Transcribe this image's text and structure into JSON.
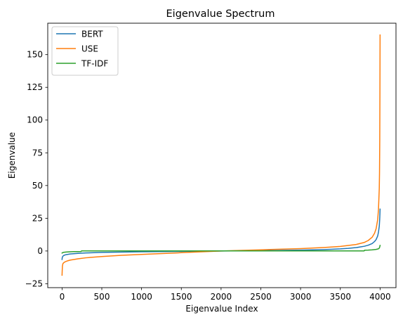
{
  "chart_data": {
    "type": "line",
    "title": "Eigenvalue Spectrum",
    "xlabel": "Eigenvalue Index",
    "ylabel": "Eigenvalue",
    "xlim": [
      -180,
      4200
    ],
    "ylim": [
      -28,
      174
    ],
    "xticks": [
      0,
      500,
      1000,
      1500,
      2000,
      2500,
      3000,
      3500,
      4000
    ],
    "yticks": [
      -25,
      0,
      25,
      50,
      75,
      100,
      125,
      150
    ],
    "grid": false,
    "legend_position": "top-left",
    "series": [
      {
        "name": "BERT",
        "color": "#1f77b4",
        "x": [
          0,
          2,
          5,
          10,
          25,
          50,
          100,
          200,
          300,
          500,
          1000,
          1500,
          2000,
          2500,
          3000,
          3300,
          3500,
          3600,
          3700,
          3800,
          3850,
          3900,
          3930,
          3950,
          3970,
          3980,
          3990,
          3995,
          3998,
          4000
        ],
        "y": [
          -6.5,
          -5.2,
          -4.6,
          -4.0,
          -3.3,
          -2.8,
          -2.3,
          -1.8,
          -1.5,
          -1.1,
          -0.6,
          -0.3,
          0.0,
          0.3,
          0.7,
          1.1,
          1.6,
          2.0,
          2.6,
          3.6,
          4.4,
          5.7,
          7.2,
          8.7,
          11.5,
          14.5,
          19.0,
          24.0,
          28.5,
          32.0
        ]
      },
      {
        "name": "USE",
        "color": "#ff7f0e",
        "x": [
          0,
          2,
          5,
          10,
          20,
          40,
          70,
          100,
          200,
          300,
          500,
          750,
          1000,
          1500,
          2000,
          2500,
          3000,
          3300,
          3500,
          3700,
          3800,
          3850,
          3900,
          3930,
          3950,
          3970,
          3980,
          3990,
          3993,
          3996,
          3998,
          4000
        ],
        "y": [
          -18.5,
          -15.0,
          -11.5,
          -9.8,
          -9.0,
          -8.2,
          -7.5,
          -7.0,
          -6.0,
          -5.2,
          -4.2,
          -3.3,
          -2.6,
          -1.3,
          0.0,
          0.9,
          1.8,
          2.7,
          3.5,
          5.0,
          6.5,
          8.0,
          10.5,
          13.5,
          17.0,
          24.0,
          32.0,
          48.0,
          60.0,
          85.0,
          120.0,
          165.0
        ]
      },
      {
        "name": "TF-IDF",
        "color": "#2ca02c",
        "x": [
          0,
          5,
          20,
          50,
          100,
          150,
          200,
          240,
          245,
          300,
          500,
          1000,
          1500,
          2000,
          2500,
          3000,
          3500,
          3800,
          3805,
          3850,
          3900,
          3950,
          3980,
          3990,
          3995,
          4000
        ],
        "y": [
          -1.6,
          -1.3,
          -1.0,
          -0.8,
          -0.6,
          -0.5,
          -0.45,
          -0.4,
          0.1,
          0.1,
          0.1,
          0.1,
          0.1,
          0.1,
          0.1,
          0.1,
          0.1,
          0.1,
          0.6,
          0.7,
          0.9,
          1.2,
          1.7,
          2.2,
          3.0,
          4.3
        ]
      }
    ]
  }
}
